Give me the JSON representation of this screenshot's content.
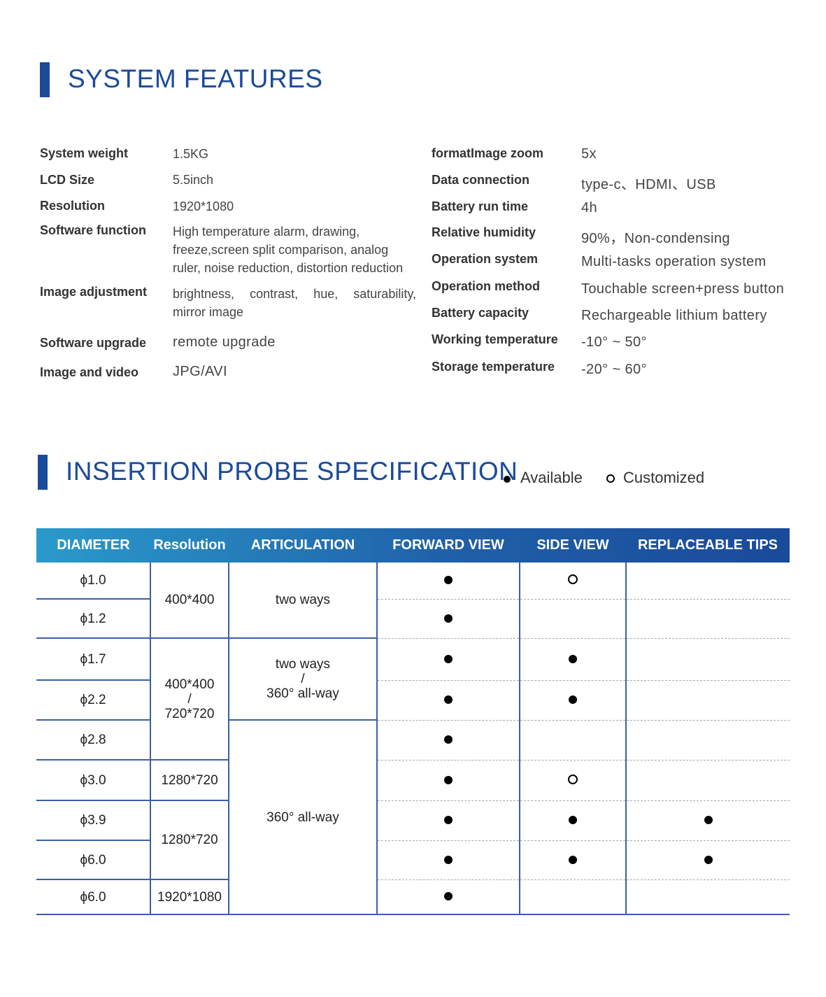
{
  "system_features": {
    "title": "SYSTEM FEATURES",
    "left": [
      {
        "label": "System weight",
        "value": "1.5KG"
      },
      {
        "label": "LCD Size",
        "value": "5.5inch"
      },
      {
        "label": "Resolution",
        "value": "1920*1080"
      },
      {
        "label": "Software function",
        "value": "High temperature alarm, drawing, freeze,screen split comparison, analog ruler, noise reduction, distortion reduction"
      },
      {
        "label": "Image adjustment",
        "value": "brightness, contrast, hue, saturability, mirror image"
      },
      {
        "label": "Software upgrade",
        "value": "remote upgrade"
      },
      {
        "label": "Image and video",
        "value": "JPG/AVI"
      }
    ],
    "right": [
      {
        "label": "formatImage zoom",
        "value": "5x"
      },
      {
        "label": "Data connection",
        "value": "type-c、HDMI、USB"
      },
      {
        "label": "Battery run time",
        "value": "4h"
      },
      {
        "label": "Relative humidity",
        "value": "90%，Non-condensing"
      },
      {
        "label": "Operation system",
        "value": "Multi-tasks operation system"
      },
      {
        "label": "Operation method",
        "value": "Touchable screen+press button"
      },
      {
        "label": "Battery capacity",
        "value": "Rechargeable lithium battery"
      },
      {
        "label": "Working temperature",
        "value": "-10° ~ 50°"
      },
      {
        "label": "Storage temperature",
        "value": "-20° ~ 60°"
      }
    ]
  },
  "probe": {
    "title": "INSERTION PROBE SPECIFICATION",
    "legend_available": "Available",
    "legend_customized": "Customized",
    "headers": [
      "DIAMETER",
      "Resolution",
      "ARTICULATION",
      "FORWARD VIEW",
      "SIDE VIEW",
      "REPLACEABLE TIPS"
    ],
    "diameters": [
      "ϕ1.0",
      "ϕ1.2",
      "ϕ1.7",
      "ϕ2.2",
      "ϕ2.8",
      "ϕ3.0",
      "ϕ3.9",
      "ϕ6.0",
      "ϕ6.0"
    ],
    "resolution_groups": [
      [
        "400*400"
      ],
      [
        "400*400",
        "/",
        "720*720"
      ],
      [
        "1280*720"
      ],
      [
        "1280*720"
      ],
      [
        "1920*1080"
      ]
    ],
    "articulation_groups": [
      [
        "two ways"
      ],
      [
        "two ways",
        "/",
        "360° all-way"
      ],
      [
        "360° all-way"
      ]
    ],
    "forward_view": [
      "available",
      "available",
      "available",
      "available",
      "available",
      "available",
      "available",
      "available",
      "available"
    ],
    "side_view": [
      "customized",
      "",
      "available",
      "available",
      "",
      "customized",
      "available",
      "available",
      ""
    ],
    "replaceable_tips": [
      "",
      "",
      "",
      "",
      "",
      "",
      "available",
      "available",
      ""
    ]
  }
}
